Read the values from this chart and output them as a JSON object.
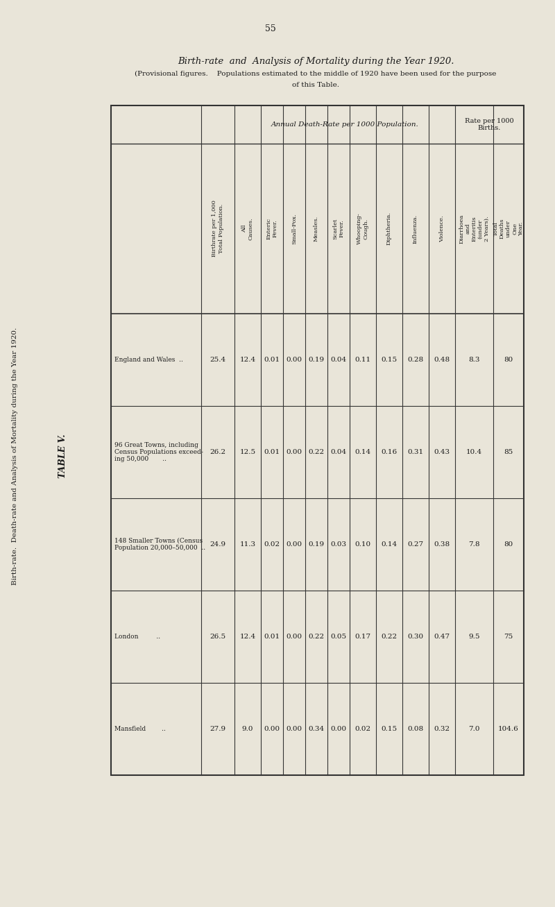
{
  "page_number": "55",
  "left_title": "Birth-rate.  Death-rate and Analysis of Mortality during the Year 1920.",
  "table_label": "TABLE V.",
  "subtitle1": "Birth-rate  and  Analysis of Mortality during the Year 1920.",
  "subtitle2": "(Provisional figures.    Populations estimated to the middle of 1920 have been used for the purpose",
  "subtitle3": "of this Table.",
  "bg_color": "#e9e5d9",
  "text_color": "#1a1a1a",
  "row_labels": [
    "England and Wales  ..",
    "96 Great Towns, including\nCensus Populations exceed-\ning 50,000       ..",
    "148 Smaller Towns (Census\nPopulation 20,000–50,000  ..",
    "London         ..",
    "Mansfield        .."
  ],
  "header_group1": "Annual Death-Rate per 1000 Population.",
  "header_group2_line1": "Rate per 1000",
  "header_group2_line2": "Births.",
  "col_headers_rotated": [
    "Birthrate per 1,000\nTotal Population.",
    "All\nCauses.",
    "Enteric\nFever.",
    "Small-Pox.",
    "Measles.",
    "Scarlet\nFever.",
    "Whooping-\nCough.",
    "Diphtheria.",
    "Influenza.",
    "Violence.",
    "Diarrhoea and Enteritis (under 2 Years).",
    "Total Deaths under One Year."
  ],
  "data": [
    [
      "25.4",
      "12.4",
      "0.01",
      "0.00",
      "0.19",
      "0.04",
      "0.11",
      "0.15",
      "0.28",
      "0.48",
      "8.3",
      "80"
    ],
    [
      "26.2",
      "12.5",
      "0.01",
      "0.00",
      "0.22",
      "0.04",
      "0.14",
      "0.16",
      "0.31",
      "0.43",
      "10.4",
      "85"
    ],
    [
      "24.9",
      "11.3",
      "0.02",
      "0.00",
      "0.19",
      "0.03",
      "0.10",
      "0.14",
      "0.27",
      "0.38",
      "7.8",
      "80"
    ],
    [
      "26.5",
      "12.4",
      "0.01",
      "0.00",
      "0.22",
      "0.05",
      "0.17",
      "0.22",
      "0.30",
      "0.47",
      "9.5",
      "75"
    ],
    [
      "27.9",
      "9.0",
      "0.00",
      "0.00",
      "0.34",
      "0.00",
      "0.02",
      "0.15",
      "0.08",
      "0.32",
      "7.0",
      "104.6"
    ]
  ]
}
